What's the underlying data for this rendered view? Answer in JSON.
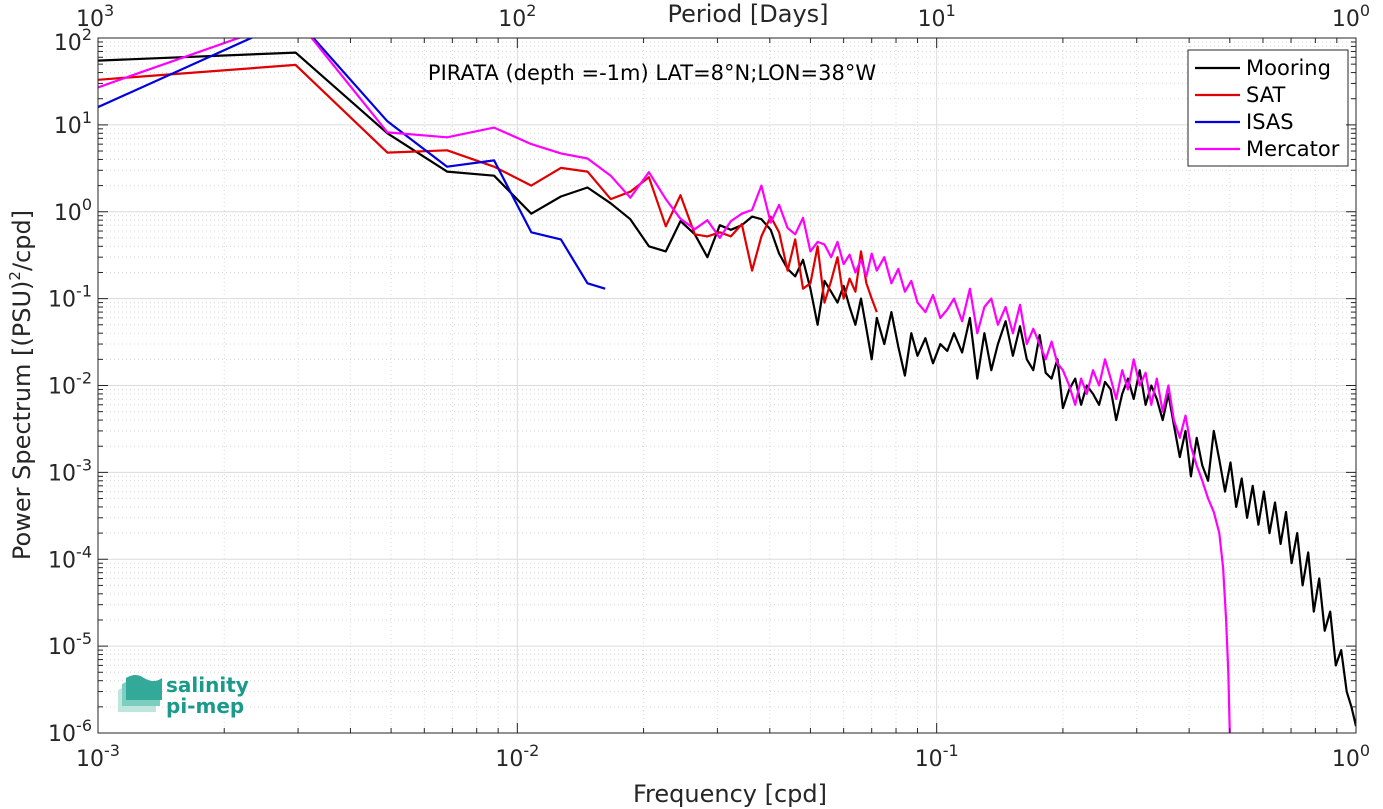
{
  "chart_data": {
    "type": "line",
    "title": "PIRATA (depth =-1m) LAT=8°N;LON=38°W",
    "xlabel": "Frequency [cpd]",
    "ylabel": "Power Spectrum [(PSU)",
    "ylabel_sup": "2",
    "ylabel_tail": "/cpd]",
    "top_xlabel": "Period [Days]",
    "xscale": "log",
    "yscale": "log",
    "xlim": [
      0.001,
      1
    ],
    "ylim": [
      1e-06,
      100
    ],
    "grid": true,
    "legend_position": "top-right",
    "x_ticks": [
      {
        "value": 0.001,
        "base": "10",
        "exp": "-3"
      },
      {
        "value": 0.01,
        "base": "10",
        "exp": "-2"
      },
      {
        "value": 0.1,
        "base": "10",
        "exp": "-1"
      },
      {
        "value": 1,
        "base": "10",
        "exp": "0"
      }
    ],
    "top_ticks": [
      {
        "value": 0.001,
        "base": "10",
        "exp": "3"
      },
      {
        "value": 0.01,
        "base": "10",
        "exp": "2"
      },
      {
        "value": 0.1,
        "base": "10",
        "exp": "1"
      },
      {
        "value": 1,
        "base": "10",
        "exp": "0"
      }
    ],
    "y_ticks": [
      {
        "value": 100,
        "base": "10",
        "exp": "2"
      },
      {
        "value": 10,
        "base": "10",
        "exp": "1"
      },
      {
        "value": 1,
        "base": "10",
        "exp": "0"
      },
      {
        "value": 0.1,
        "base": "10",
        "exp": "-1"
      },
      {
        "value": 0.01,
        "base": "10",
        "exp": "-2"
      },
      {
        "value": 0.001,
        "base": "10",
        "exp": "-3"
      },
      {
        "value": 0.0001,
        "base": "10",
        "exp": "-4"
      },
      {
        "value": 1e-05,
        "base": "10",
        "exp": "-5"
      },
      {
        "value": 1e-06,
        "base": "10",
        "exp": "-6"
      }
    ],
    "series": [
      {
        "name": "Mooring",
        "color": "#000000",
        "points": [
          [
            0.001,
            55
          ],
          [
            0.00296,
            68
          ],
          [
            0.0049,
            8
          ],
          [
            0.0068,
            2.9
          ],
          [
            0.0088,
            2.6
          ],
          [
            0.0108,
            0.95
          ],
          [
            0.0127,
            1.5
          ],
          [
            0.0147,
            1.9
          ],
          [
            0.0167,
            1.25
          ],
          [
            0.0186,
            0.82
          ],
          [
            0.0206,
            0.4
          ],
          [
            0.0226,
            0.35
          ],
          [
            0.0245,
            0.78
          ],
          [
            0.0265,
            0.55
          ],
          [
            0.0284,
            0.3
          ],
          [
            0.0304,
            0.7
          ],
          [
            0.0323,
            0.62
          ],
          [
            0.0343,
            0.7
          ],
          [
            0.0363,
            0.88
          ],
          [
            0.0382,
            0.82
          ],
          [
            0.0402,
            0.62
          ],
          [
            0.0421,
            0.33
          ],
          [
            0.0441,
            0.22
          ],
          [
            0.046,
            0.18
          ],
          [
            0.048,
            0.28
          ],
          [
            0.05,
            0.13
          ],
          [
            0.052,
            0.05
          ],
          [
            0.054,
            0.16
          ],
          [
            0.056,
            0.12
          ],
          [
            0.058,
            0.09
          ],
          [
            0.06,
            0.14
          ],
          [
            0.062,
            0.08
          ],
          [
            0.064,
            0.05
          ],
          [
            0.066,
            0.1
          ],
          [
            0.068,
            0.045
          ],
          [
            0.07,
            0.02
          ],
          [
            0.072,
            0.06
          ],
          [
            0.075,
            0.03
          ],
          [
            0.078,
            0.07
          ],
          [
            0.081,
            0.028
          ],
          [
            0.084,
            0.013
          ],
          [
            0.087,
            0.04
          ],
          [
            0.09,
            0.022
          ],
          [
            0.094,
            0.035
          ],
          [
            0.098,
            0.018
          ],
          [
            0.102,
            0.03
          ],
          [
            0.106,
            0.025
          ],
          [
            0.11,
            0.04
          ],
          [
            0.115,
            0.024
          ],
          [
            0.12,
            0.06
          ],
          [
            0.125,
            0.012
          ],
          [
            0.13,
            0.04
          ],
          [
            0.135,
            0.015
          ],
          [
            0.14,
            0.03
          ],
          [
            0.146,
            0.055
          ],
          [
            0.152,
            0.022
          ],
          [
            0.158,
            0.048
          ],
          [
            0.164,
            0.02
          ],
          [
            0.17,
            0.015
          ],
          [
            0.176,
            0.038
          ],
          [
            0.182,
            0.014
          ],
          [
            0.188,
            0.012
          ],
          [
            0.194,
            0.02
          ],
          [
            0.2,
            0.0055
          ],
          [
            0.207,
            0.009
          ],
          [
            0.214,
            0.012
          ],
          [
            0.221,
            0.006
          ],
          [
            0.228,
            0.01
          ],
          [
            0.236,
            0.008
          ],
          [
            0.244,
            0.006
          ],
          [
            0.252,
            0.011
          ],
          [
            0.26,
            0.009
          ],
          [
            0.268,
            0.004
          ],
          [
            0.277,
            0.008
          ],
          [
            0.286,
            0.012
          ],
          [
            0.295,
            0.007
          ],
          [
            0.305,
            0.015
          ],
          [
            0.315,
            0.006
          ],
          [
            0.325,
            0.01
          ],
          [
            0.335,
            0.007
          ],
          [
            0.346,
            0.004
          ],
          [
            0.357,
            0.008
          ],
          [
            0.368,
            0.0035
          ],
          [
            0.38,
            0.0015
          ],
          [
            0.392,
            0.003
          ],
          [
            0.404,
            0.0009
          ],
          [
            0.417,
            0.0025
          ],
          [
            0.43,
            0.0012
          ],
          [
            0.444,
            0.0008
          ],
          [
            0.458,
            0.003
          ],
          [
            0.472,
            0.0014
          ],
          [
            0.487,
            0.0006
          ],
          [
            0.502,
            0.0013
          ],
          [
            0.518,
            0.0004
          ],
          [
            0.534,
            0.00085
          ],
          [
            0.55,
            0.0003
          ],
          [
            0.567,
            0.0007
          ],
          [
            0.585,
            0.00025
          ],
          [
            0.603,
            0.0006
          ],
          [
            0.622,
            0.0002
          ],
          [
            0.641,
            0.00045
          ],
          [
            0.661,
            0.00015
          ],
          [
            0.681,
            0.00035
          ],
          [
            0.702,
            9e-05
          ],
          [
            0.724,
            0.0002
          ],
          [
            0.746,
            5e-05
          ],
          [
            0.769,
            0.00012
          ],
          [
            0.793,
            2.5e-05
          ],
          [
            0.817,
            6e-05
          ],
          [
            0.842,
            1.5e-05
          ],
          [
            0.868,
            2.5e-05
          ],
          [
            0.895,
            6e-06
          ],
          [
            0.922,
            9e-06
          ],
          [
            0.95,
            3e-06
          ],
          [
            0.975,
            2e-06
          ],
          [
            1.0,
            1.2e-06
          ]
        ]
      },
      {
        "name": "SAT",
        "color": "#e00000",
        "points": [
          [
            0.001,
            33
          ],
          [
            0.00296,
            49
          ],
          [
            0.0049,
            4.8
          ],
          [
            0.0068,
            5.1
          ],
          [
            0.0088,
            3.3
          ],
          [
            0.0108,
            2.0
          ],
          [
            0.0127,
            3.2
          ],
          [
            0.0147,
            2.9
          ],
          [
            0.0167,
            1.4
          ],
          [
            0.0186,
            1.7
          ],
          [
            0.0206,
            2.5
          ],
          [
            0.0226,
            0.68
          ],
          [
            0.0245,
            1.55
          ],
          [
            0.0265,
            0.55
          ],
          [
            0.0284,
            0.52
          ],
          [
            0.0304,
            0.58
          ],
          [
            0.0323,
            0.52
          ],
          [
            0.0343,
            0.72
          ],
          [
            0.0363,
            0.21
          ],
          [
            0.0382,
            0.52
          ],
          [
            0.0402,
            0.88
          ],
          [
            0.0421,
            0.58
          ],
          [
            0.0441,
            0.21
          ],
          [
            0.046,
            0.48
          ],
          [
            0.048,
            0.13
          ],
          [
            0.05,
            0.15
          ],
          [
            0.052,
            0.4
          ],
          [
            0.054,
            0.09
          ],
          [
            0.056,
            0.16
          ],
          [
            0.058,
            0.3
          ],
          [
            0.06,
            0.1
          ],
          [
            0.062,
            0.17
          ],
          [
            0.064,
            0.12
          ],
          [
            0.066,
            0.35
          ],
          [
            0.068,
            0.15
          ],
          [
            0.07,
            0.1
          ],
          [
            0.072,
            0.07
          ]
        ]
      },
      {
        "name": "ISAS",
        "color": "#0000e0",
        "points": [
          [
            0.001,
            16
          ],
          [
            0.00296,
            170
          ],
          [
            0.0049,
            11
          ],
          [
            0.0068,
            3.3
          ],
          [
            0.0088,
            3.9
          ],
          [
            0.0108,
            0.58
          ],
          [
            0.0127,
            0.48
          ],
          [
            0.0147,
            0.15
          ],
          [
            0.0162,
            0.13
          ]
        ]
      },
      {
        "name": "Mercator",
        "color": "#ff00ff",
        "points": [
          [
            0.001,
            27
          ],
          [
            0.00296,
            170
          ],
          [
            0.0049,
            8.2
          ],
          [
            0.0068,
            7.2
          ],
          [
            0.0088,
            9.3
          ],
          [
            0.0108,
            6
          ],
          [
            0.0127,
            4.7
          ],
          [
            0.0147,
            4.1
          ],
          [
            0.0167,
            2.6
          ],
          [
            0.0186,
            1.45
          ],
          [
            0.0206,
            2.85
          ],
          [
            0.0226,
            1.4
          ],
          [
            0.0245,
            0.83
          ],
          [
            0.0265,
            0.63
          ],
          [
            0.0284,
            0.8
          ],
          [
            0.0304,
            0.5
          ],
          [
            0.0323,
            0.78
          ],
          [
            0.0343,
            0.95
          ],
          [
            0.0363,
            1.05
          ],
          [
            0.0382,
            2.0
          ],
          [
            0.0402,
            0.75
          ],
          [
            0.0421,
            1.2
          ],
          [
            0.0441,
            0.65
          ],
          [
            0.046,
            0.55
          ],
          [
            0.048,
            0.85
          ],
          [
            0.05,
            0.35
          ],
          [
            0.052,
            0.45
          ],
          [
            0.054,
            0.42
          ],
          [
            0.056,
            0.3
          ],
          [
            0.058,
            0.45
          ],
          [
            0.06,
            0.25
          ],
          [
            0.062,
            0.32
          ],
          [
            0.064,
            0.2
          ],
          [
            0.066,
            0.28
          ],
          [
            0.068,
            0.18
          ],
          [
            0.07,
            0.33
          ],
          [
            0.072,
            0.21
          ],
          [
            0.075,
            0.3
          ],
          [
            0.078,
            0.15
          ],
          [
            0.081,
            0.22
          ],
          [
            0.084,
            0.12
          ],
          [
            0.087,
            0.16
          ],
          [
            0.09,
            0.09
          ],
          [
            0.094,
            0.07
          ],
          [
            0.098,
            0.11
          ],
          [
            0.102,
            0.06
          ],
          [
            0.106,
            0.075
          ],
          [
            0.11,
            0.1
          ],
          [
            0.115,
            0.055
          ],
          [
            0.12,
            0.13
          ],
          [
            0.125,
            0.04
          ],
          [
            0.13,
            0.08
          ],
          [
            0.135,
            0.1
          ],
          [
            0.14,
            0.05
          ],
          [
            0.146,
            0.08
          ],
          [
            0.152,
            0.04
          ],
          [
            0.158,
            0.085
          ],
          [
            0.164,
            0.03
          ],
          [
            0.17,
            0.045
          ],
          [
            0.176,
            0.03
          ],
          [
            0.182,
            0.02
          ],
          [
            0.188,
            0.032
          ],
          [
            0.194,
            0.018
          ],
          [
            0.2,
            0.015
          ],
          [
            0.207,
            0.01
          ],
          [
            0.214,
            0.006
          ],
          [
            0.221,
            0.012
          ],
          [
            0.228,
            0.008
          ],
          [
            0.236,
            0.015
          ],
          [
            0.244,
            0.01
          ],
          [
            0.252,
            0.02
          ],
          [
            0.26,
            0.012
          ],
          [
            0.268,
            0.007
          ],
          [
            0.277,
            0.015
          ],
          [
            0.286,
            0.009
          ],
          [
            0.295,
            0.02
          ],
          [
            0.305,
            0.01
          ],
          [
            0.315,
            0.014
          ],
          [
            0.325,
            0.006
          ],
          [
            0.335,
            0.012
          ],
          [
            0.346,
            0.005
          ],
          [
            0.357,
            0.01
          ],
          [
            0.368,
            0.004
          ],
          [
            0.38,
            0.0025
          ],
          [
            0.392,
            0.0045
          ],
          [
            0.404,
            0.002
          ],
          [
            0.417,
            0.0012
          ],
          [
            0.43,
            0.0008
          ],
          [
            0.444,
            0.0005
          ],
          [
            0.458,
            0.00035
          ],
          [
            0.472,
            0.0002
          ],
          [
            0.482,
            8e-05
          ],
          [
            0.49,
            2e-05
          ],
          [
            0.496,
            5e-06
          ],
          [
            0.5,
            1e-06
          ]
        ]
      }
    ]
  },
  "logo": {
    "line1": "salinity",
    "line2": "pi-mep"
  }
}
